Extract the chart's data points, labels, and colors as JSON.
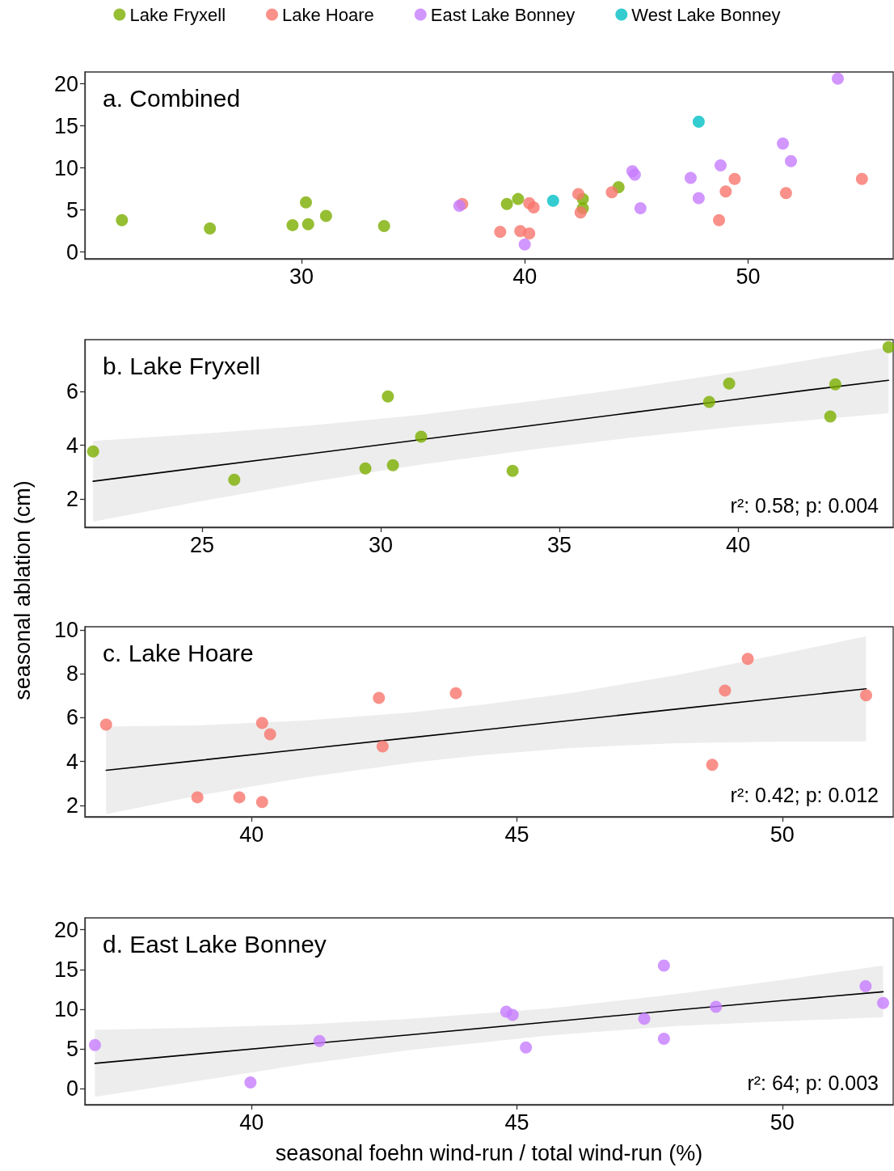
{
  "chart_data": [
    {
      "type": "scatter",
      "title": "a. Combined",
      "legend": "top",
      "marker": "circle",
      "xlim": [
        20.3,
        56.5
      ],
      "xticks": [
        30,
        40,
        50
      ],
      "ylim": [
        -0.8,
        21.4
      ],
      "yticks": [
        0,
        5,
        10,
        15,
        20
      ],
      "series": [
        {
          "name": "Lake Fryxell",
          "color": "#7cae00",
          "x": [
            21.96,
            25.9,
            30.2,
            29.6,
            30.3,
            31.1,
            33.7,
            39.2,
            39.7,
            42.6,
            42.6,
            44.2
          ],
          "values": [
            3.8,
            2.8,
            5.9,
            3.2,
            3.3,
            4.3,
            3.1,
            5.7,
            6.3,
            6.3,
            5.2,
            7.7
          ]
        },
        {
          "name": "Lake Hoare",
          "color": "#f8766d",
          "x": [
            37.2,
            38.9,
            39.8,
            40.2,
            40.2,
            40.4,
            42.4,
            42.5,
            43.9,
            48.7,
            49.0,
            49.4,
            51.7,
            55.1
          ],
          "values": [
            5.7,
            2.4,
            2.5,
            2.2,
            5.8,
            5.3,
            6.9,
            4.7,
            7.1,
            3.8,
            7.2,
            8.7,
            7.0,
            8.7
          ]
        },
        {
          "name": "East Lake Bonney",
          "color": "#c77cff",
          "x": [
            37.07,
            40.0,
            44.82,
            44.93,
            45.18,
            47.43,
            47.79,
            48.77,
            51.56,
            51.92,
            54.02
          ],
          "values": [
            5.5,
            0.9,
            9.6,
            9.2,
            5.2,
            8.8,
            6.4,
            10.3,
            12.9,
            10.8,
            20.6
          ]
        },
        {
          "name": "West Lake Bonney",
          "color": "#00bfc4",
          "x": [
            41.27,
            47.79
          ],
          "values": [
            6.1,
            15.5
          ]
        }
      ]
    },
    {
      "type": "scatter",
      "title": "b. Lake Fryxell",
      "ylabel": "seasonal ablation (cm)",
      "marker": "circle",
      "annotations": [
        "r²: 0.58; p: 0.004"
      ],
      "xlim": [
        21.72,
        44.34
      ],
      "xticks": [
        25,
        30,
        35,
        40
      ],
      "ylim": [
        0.95,
        7.93
      ],
      "yticks": [
        2,
        4,
        6
      ],
      "series": [
        {
          "color": "#7cae00",
          "x": [
            21.95,
            25.9,
            29.57,
            30.2,
            30.34,
            31.13,
            33.69,
            39.19,
            39.75,
            42.58,
            42.72,
            44.21
          ],
          "values": [
            3.77,
            2.72,
            3.14,
            5.82,
            3.26,
            4.32,
            3.05,
            5.61,
            6.3,
            5.07,
            6.27,
            7.65
          ]
        },
        {
          "type": "line",
          "marker": "none",
          "color": "#000000",
          "x": [
            21.95,
            25,
            28,
            31,
            34.3,
            37,
            40,
            42,
            44.21
          ],
          "values": [
            2.66,
            3.18,
            3.68,
            4.19,
            4.75,
            5.21,
            5.72,
            6.06,
            6.42
          ],
          "lower": [
            1.16,
            1.93,
            2.63,
            3.26,
            3.85,
            4.28,
            4.7,
            4.94,
            5.19
          ],
          "upper": [
            4.16,
            4.43,
            4.73,
            5.12,
            5.65,
            6.14,
            6.74,
            7.18,
            7.65
          ]
        }
      ]
    },
    {
      "type": "scatter",
      "title": "c. Lake Hoare",
      "marker": "circle",
      "annotations": [
        "r²: 0.42; p: 0.012"
      ],
      "xlim": [
        36.86,
        52.09
      ],
      "xticks": [
        40,
        45,
        50
      ],
      "ylim": [
        1.48,
        10.15
      ],
      "yticks": [
        2,
        4,
        6,
        8,
        10
      ],
      "series": [
        {
          "color": "#f8766d",
          "x": [
            37.26,
            38.98,
            39.77,
            40.2,
            40.2,
            40.35,
            42.4,
            42.47,
            43.85,
            48.68,
            48.92,
            49.35,
            51.58
          ],
          "values": [
            5.69,
            2.37,
            2.37,
            2.15,
            5.76,
            5.24,
            6.9,
            4.69,
            7.12,
            3.85,
            7.24,
            8.68,
            7.02
          ]
        },
        {
          "type": "line",
          "marker": "none",
          "color": "#000000",
          "x": [
            37.26,
            39,
            41,
            43,
            44.3,
            46,
            48,
            50,
            51.58
          ],
          "values": [
            3.6,
            4.05,
            4.57,
            5.09,
            5.43,
            5.87,
            6.39,
            6.91,
            7.32
          ],
          "lower": [
            1.6,
            2.45,
            3.27,
            3.94,
            4.28,
            4.62,
            4.84,
            4.91,
            4.92
          ],
          "upper": [
            5.6,
            5.65,
            5.87,
            6.24,
            6.58,
            7.12,
            7.94,
            8.91,
            9.72
          ]
        }
      ]
    },
    {
      "type": "scatter",
      "title": "d. East Lake Bonney",
      "xlabel": "seasonal foehn wind-run / total wind-run (%)",
      "marker": "circle",
      "annotations": [
        "r²: 64; p: 0.003"
      ],
      "xlim": [
        36.86,
        52.09
      ],
      "xticks": [
        40,
        45,
        50
      ],
      "ylim": [
        -2,
        21.5
      ],
      "yticks": [
        0,
        5,
        10,
        15,
        20
      ],
      "series": [
        {
          "color": "#c77cff",
          "x": [
            37.05,
            39.98,
            41.28,
            44.8,
            44.92,
            45.17,
            47.4,
            47.77,
            47.77,
            48.75,
            51.57,
            51.9
          ],
          "values": [
            5.5,
            0.8,
            6.0,
            9.7,
            9.3,
            5.2,
            8.8,
            15.5,
            6.3,
            10.3,
            12.9,
            10.8
          ]
        },
        {
          "type": "line",
          "marker": "none",
          "color": "#000000",
          "x": [
            37.05,
            39,
            41,
            43,
            45.6,
            48,
            50,
            51.9
          ],
          "values": [
            3.2,
            4.4,
            5.6,
            6.8,
            8.4,
            9.9,
            11.1,
            12.2
          ],
          "lower": [
            -1,
            1,
            3.1,
            4.9,
            6.7,
            7.9,
            8.5,
            9
          ],
          "upper": [
            7.4,
            7.7,
            8.1,
            8.8,
            10.1,
            11.9,
            13.7,
            15.5
          ]
        }
      ]
    }
  ]
}
